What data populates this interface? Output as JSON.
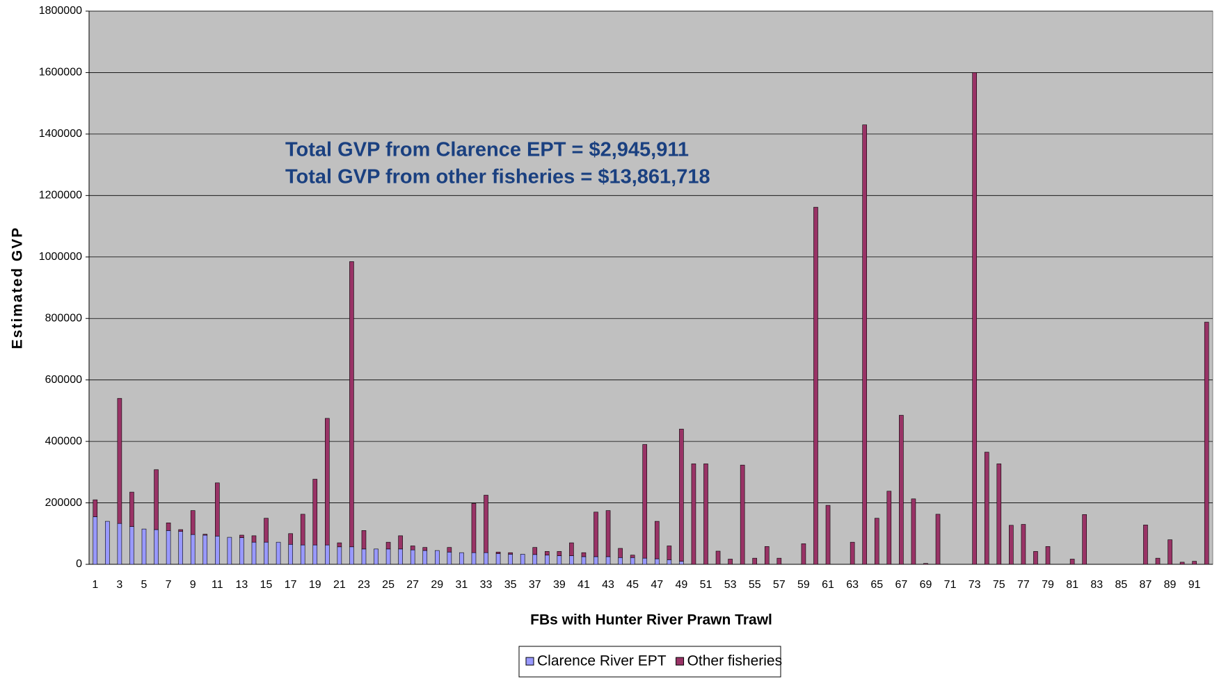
{
  "chart_data": {
    "type": "stacked_bar",
    "annotations": [
      "Total GVP from Clarence EPT = $2,945,911",
      "Total GVP from other fisheries = $13,861,718"
    ],
    "y_label": "Estimated GVP",
    "x_label": "FBs with Hunter River Prawn Trawl",
    "categories": [
      "1",
      null,
      "3",
      null,
      "5",
      null,
      "7",
      null,
      "9",
      null,
      "11",
      null,
      "13",
      null,
      "15",
      null,
      "17",
      null,
      "19",
      null,
      "21",
      null,
      "23",
      null,
      "25",
      null,
      "27",
      null,
      "29",
      null,
      "31",
      null,
      "33",
      null,
      "35",
      null,
      "37",
      null,
      "39",
      null,
      "41",
      null,
      "43",
      null,
      "45",
      null,
      "47",
      null,
      "49",
      null,
      "51",
      null,
      "53",
      null,
      "55",
      null,
      "57",
      null,
      "59",
      null,
      "61",
      null,
      "63",
      null,
      "65",
      null,
      "67",
      null,
      "69",
      null,
      "71",
      null,
      "73",
      null,
      "75",
      null,
      "77",
      null,
      "79",
      null,
      "81",
      null,
      "83",
      null,
      "85",
      null,
      "87",
      null,
      "89",
      null,
      "91",
      null
    ],
    "series": [
      {
        "name": "Clarence River EPT",
        "color": "#9999ff",
        "values": [
          155000,
          140000,
          133000,
          123000,
          115000,
          113000,
          110000,
          107000,
          97000,
          95000,
          92000,
          88000,
          87000,
          72000,
          72000,
          72000,
          65000,
          63000,
          63000,
          63000,
          57000,
          57000,
          50000,
          50000,
          50000,
          50000,
          47000,
          45000,
          45000,
          40000,
          38000,
          38000,
          38000,
          35000,
          33000,
          33000,
          32000,
          30000,
          28000,
          28000,
          25000,
          25000,
          25000,
          22000,
          22000,
          20000,
          18000,
          15000,
          10000,
          0,
          0,
          0,
          0,
          0,
          0,
          0,
          0,
          0,
          0,
          0,
          0,
          0,
          0,
          0,
          0,
          0,
          0,
          0,
          0,
          0,
          0,
          0,
          0,
          0,
          0,
          0,
          0,
          0,
          0,
          0,
          0,
          0,
          0,
          0,
          0,
          0,
          0,
          0,
          0,
          0,
          0,
          0
        ]
      },
      {
        "name": "Other fisheries",
        "color": "#993366",
        "values": [
          55000,
          0,
          407000,
          112000,
          0,
          195000,
          25000,
          6000,
          78000,
          3000,
          173000,
          0,
          8000,
          21000,
          78000,
          0,
          35000,
          100000,
          214000,
          412000,
          13000,
          928000,
          60000,
          0,
          22000,
          43000,
          13000,
          10000,
          0,
          15000,
          0,
          160000,
          187000,
          5000,
          5000,
          0,
          23000,
          12000,
          14000,
          42000,
          13000,
          145000,
          150000,
          30000,
          8000,
          370000,
          122000,
          45000,
          430000,
          327000,
          327000,
          43000,
          17000,
          323000,
          20000,
          58000,
          20000,
          0,
          67000,
          1162000,
          192000,
          0,
          72000,
          1430000,
          150000,
          238000,
          485000,
          213000,
          3000,
          163000,
          0,
          0,
          1600000,
          365000,
          327000,
          127000,
          130000,
          42000,
          58000,
          0,
          17000,
          162000,
          0,
          0,
          0,
          0,
          128000,
          20000,
          80000,
          7000,
          10000,
          788000
        ]
      }
    ],
    "ylim": [
      0,
      1800000
    ],
    "yticks": [
      0,
      200000,
      400000,
      600000,
      800000,
      1000000,
      1200000,
      1400000,
      1600000,
      1800000
    ],
    "grid": true,
    "plot_background": "#c0c0c0",
    "legend": "bottom"
  }
}
